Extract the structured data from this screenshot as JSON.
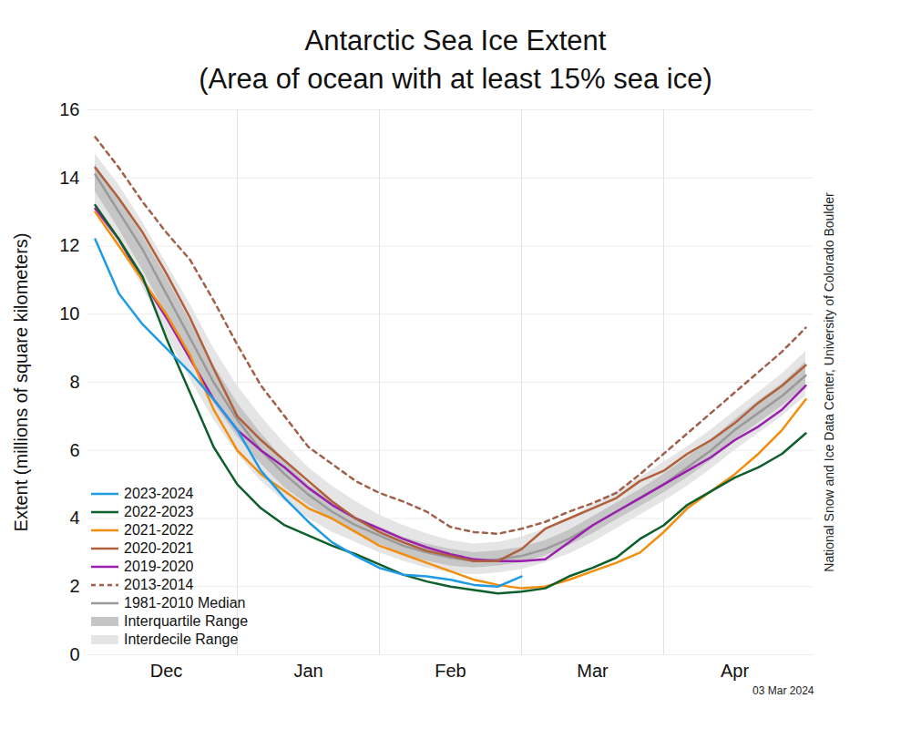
{
  "chart_data": {
    "type": "line",
    "title": "Antarctic Sea Ice Extent",
    "subtitle": "(Area of ocean with at least 15% sea ice)",
    "ylabel": "Extent (millions of square kilometers)",
    "credit": "National Snow and Ice Data Center, University of Colorado Boulder",
    "date": "03 Mar 2024",
    "categories": [
      null,
      null,
      null,
      "Dec",
      null,
      null,
      null,
      null,
      null,
      "Jan",
      null,
      null,
      null,
      null,
      null,
      "Feb",
      null,
      null,
      null,
      null,
      null,
      "Mar",
      null,
      null,
      null,
      null,
      null,
      "Apr",
      null,
      null,
      null
    ],
    "ylim": [
      0,
      16
    ],
    "yticks": [
      0,
      2,
      4,
      6,
      8,
      10,
      12,
      14,
      16
    ],
    "grid": true,
    "legend": "lower left",
    "series": [
      {
        "name": "2023-2024",
        "color": "#1f9be6",
        "values": [
          12.2,
          10.6,
          9.7,
          9.0,
          8.3,
          7.5,
          6.6,
          5.4,
          4.6,
          3.9,
          3.3,
          2.9,
          2.55,
          2.35,
          2.3,
          2.2,
          2.05,
          2.0,
          2.3,
          null,
          null,
          null,
          null,
          null,
          null,
          null,
          null,
          null,
          null,
          null,
          null
        ]
      },
      {
        "name": "2022-2023",
        "color": "#0e5f2b",
        "values": [
          13.2,
          12.2,
          11.1,
          9.3,
          7.7,
          6.1,
          5.0,
          4.3,
          3.8,
          3.5,
          3.2,
          2.95,
          2.65,
          2.35,
          2.15,
          2.0,
          1.9,
          1.8,
          1.85,
          1.95,
          2.3,
          2.55,
          2.85,
          3.4,
          3.8,
          4.4,
          4.8,
          5.2,
          5.5,
          5.9,
          6.5
        ]
      },
      {
        "name": "2021-2022",
        "color": "#f28e0b",
        "values": [
          13.0,
          12.0,
          11.0,
          10.0,
          8.8,
          7.2,
          6.0,
          5.3,
          4.8,
          4.3,
          4.0,
          3.6,
          3.2,
          2.95,
          2.7,
          2.45,
          2.2,
          2.05,
          1.95,
          2.0,
          2.2,
          2.45,
          2.7,
          3.0,
          3.6,
          4.3,
          4.8,
          5.3,
          5.9,
          6.6,
          7.5
        ]
      },
      {
        "name": "2020-2021",
        "color": "#b0603a",
        "values": [
          14.3,
          13.4,
          12.4,
          11.2,
          9.9,
          8.4,
          7.0,
          6.3,
          5.7,
          5.1,
          4.5,
          4.0,
          3.6,
          3.3,
          3.05,
          2.9,
          2.75,
          2.75,
          3.1,
          3.7,
          4.0,
          4.3,
          4.6,
          5.1,
          5.4,
          5.9,
          6.3,
          6.8,
          7.4,
          7.9,
          8.5
        ]
      },
      {
        "name": "2019-2020",
        "color": "#9a1fae",
        "values": [
          13.1,
          12.2,
          11.0,
          9.9,
          8.7,
          7.5,
          6.6,
          6.0,
          5.5,
          4.9,
          4.4,
          4.0,
          3.7,
          3.4,
          3.15,
          2.95,
          2.8,
          2.75,
          2.75,
          2.8,
          3.3,
          3.8,
          4.2,
          4.6,
          5.0,
          5.4,
          5.8,
          6.3,
          6.7,
          7.2,
          7.9
        ]
      },
      {
        "name": "2013-2014",
        "color": "#a0604a",
        "line_style": "dashed",
        "values": [
          15.2,
          14.3,
          13.3,
          12.4,
          11.6,
          10.4,
          9.1,
          7.9,
          7.0,
          6.1,
          5.6,
          5.1,
          4.75,
          4.5,
          4.2,
          3.75,
          3.6,
          3.55,
          3.7,
          3.9,
          4.2,
          4.45,
          4.75,
          5.3,
          5.9,
          6.5,
          7.1,
          7.7,
          8.3,
          8.9,
          9.6
        ]
      },
      {
        "name": "1981-2010 Median",
        "color": "#9a9a9a",
        "values": [
          14.1,
          13.0,
          11.9,
          10.6,
          9.3,
          8.0,
          6.9,
          6.0,
          5.3,
          4.7,
          4.2,
          3.8,
          3.5,
          3.2,
          3.0,
          2.85,
          2.75,
          2.8,
          2.9,
          3.1,
          3.4,
          3.8,
          4.2,
          4.6,
          5.0,
          5.5,
          6.0,
          6.6,
          7.1,
          7.6,
          8.2
        ]
      },
      {
        "name": "Interquartile Range",
        "color": "#c6c6c6",
        "type": "band",
        "lower": [
          13.6,
          12.5,
          11.3,
          10.0,
          8.7,
          7.4,
          6.4,
          5.6,
          4.9,
          4.4,
          3.95,
          3.55,
          3.25,
          2.95,
          2.75,
          2.6,
          2.55,
          2.6,
          2.7,
          2.9,
          3.2,
          3.55,
          3.95,
          4.35,
          4.75,
          5.2,
          5.7,
          6.3,
          6.8,
          7.3,
          7.9
        ],
        "upper": [
          14.4,
          13.4,
          12.3,
          11.1,
          9.8,
          8.5,
          7.4,
          6.5,
          5.7,
          5.0,
          4.5,
          4.05,
          3.75,
          3.45,
          3.25,
          3.1,
          3.0,
          3.05,
          3.15,
          3.35,
          3.65,
          4.05,
          4.45,
          4.85,
          5.3,
          5.8,
          6.3,
          6.9,
          7.45,
          7.95,
          8.6
        ]
      },
      {
        "name": "Interdecile Range",
        "color": "#e5e5e5",
        "type": "band",
        "lower": [
          13.1,
          12.0,
          10.8,
          9.4,
          8.1,
          6.9,
          5.9,
          5.1,
          4.5,
          4.0,
          3.6,
          3.3,
          3.0,
          2.75,
          2.55,
          2.4,
          2.35,
          2.4,
          2.5,
          2.7,
          2.95,
          3.3,
          3.7,
          4.1,
          4.5,
          4.95,
          5.45,
          6.0,
          6.5,
          7.0,
          7.6
        ],
        "upper": [
          14.7,
          13.8,
          12.7,
          11.5,
          10.3,
          9.0,
          7.9,
          7.0,
          6.2,
          5.5,
          4.95,
          4.5,
          4.1,
          3.8,
          3.55,
          3.35,
          3.25,
          3.3,
          3.45,
          3.7,
          4.0,
          4.4,
          4.8,
          5.2,
          5.65,
          6.1,
          6.6,
          7.15,
          7.7,
          8.25,
          8.9
        ]
      }
    ]
  }
}
